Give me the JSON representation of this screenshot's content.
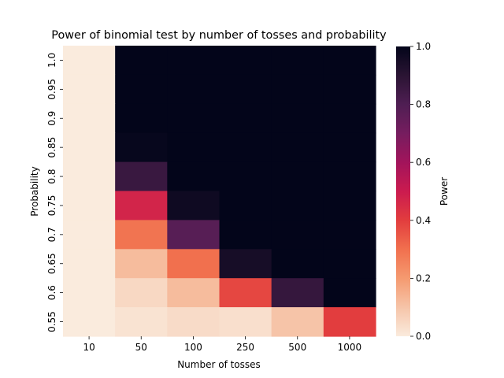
{
  "chart_data": {
    "type": "heatmap",
    "title": "Power of binomial test by number of tosses and probability",
    "xlabel": "Number of tosses",
    "ylabel": "Probability",
    "x_categories": [
      "10",
      "50",
      "100",
      "250",
      "500",
      "1000"
    ],
    "y_categories": [
      "1.0",
      "0.95",
      "0.9",
      "0.85",
      "0.8",
      "0.75",
      "0.7",
      "0.65",
      "0.6",
      "0.55"
    ],
    "values": [
      [
        0.0,
        1.0,
        1.0,
        1.0,
        1.0,
        1.0
      ],
      [
        0.0,
        1.0,
        1.0,
        1.0,
        1.0,
        1.0
      ],
      [
        0.0,
        1.0,
        1.0,
        1.0,
        1.0,
        1.0
      ],
      [
        0.0,
        0.99,
        1.0,
        1.0,
        1.0,
        1.0
      ],
      [
        0.0,
        0.86,
        1.0,
        1.0,
        1.0,
        1.0
      ],
      [
        0.0,
        0.47,
        0.97,
        1.0,
        1.0,
        1.0
      ],
      [
        0.0,
        0.29,
        0.78,
        1.0,
        1.0,
        1.0
      ],
      [
        0.0,
        0.12,
        0.3,
        0.95,
        1.0,
        1.0
      ],
      [
        0.0,
        0.05,
        0.12,
        0.38,
        0.87,
        1.0
      ],
      [
        0.0,
        0.02,
        0.04,
        0.03,
        0.1,
        0.4
      ]
    ],
    "colorbar": {
      "label": "Power",
      "min": 0.0,
      "max": 1.0,
      "ticks": [
        "0.0",
        "0.2",
        "0.4",
        "0.6",
        "0.8",
        "1.0"
      ]
    }
  }
}
